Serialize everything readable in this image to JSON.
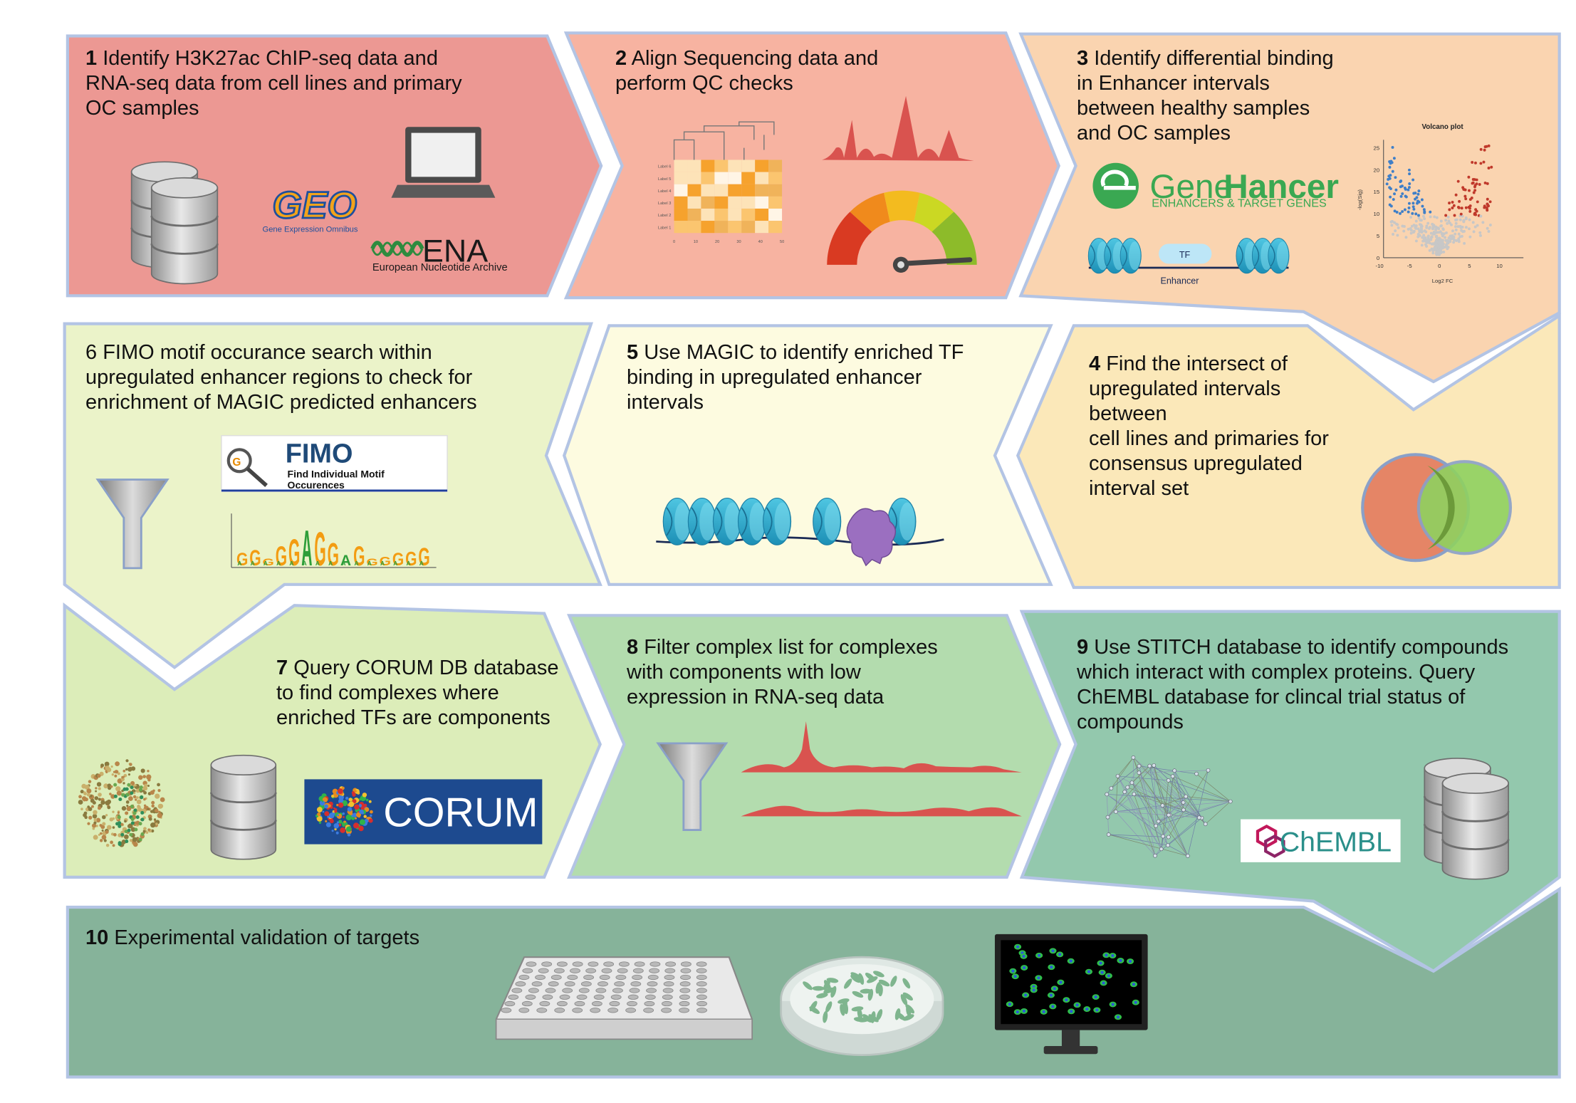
{
  "colors": {
    "step1": "#ec9893",
    "step2": "#f7b3a1",
    "step3": "#fad4b0",
    "step4": "#fbe8b9",
    "step5": "#fdfbe0",
    "step6": "#ebf3c9",
    "step7": "#dcedb9",
    "step8": "#b3dcae",
    "step9": "#93c8ad",
    "step10": "#86b39a",
    "border": "#b3c4e4"
  },
  "steps": [
    {
      "num": "1",
      "text": "Identify H3K27ac ChIP-seq data and\nRNA-seq data from cell lines and primary\nOC samples"
    },
    {
      "num": "2",
      "text": "Align Sequencing data and\nperform QC checks"
    },
    {
      "num": "3",
      "text": "Identify differential binding\nin Enhancer intervals\nbetween healthy samples\nand OC samples"
    },
    {
      "num": "4",
      "text": "Find the intersect of\nupregulated intervals\nbetween\ncell lines and primaries for\nconsensus upregulated\ninterval set"
    },
    {
      "num": "5",
      "text": "Use MAGIC to identify enriched TF\nbinding in upregulated enhancer\nintervals"
    },
    {
      "num": "6",
      "text": "FIMO motif occurance search within\nupregulated enhancer regions to check for\nenrichment of MAGIC predicted enhancers"
    },
    {
      "num": "7",
      "text": "Query CORUM DB database\nto find complexes where\nenriched TFs are components"
    },
    {
      "num": "8",
      "text": "Filter complex list for complexes\nwith components with low\nexpression in RNA-seq data"
    },
    {
      "num": "9",
      "text": "Use STITCH database to identify compounds\nwhich interact with complex proteins. Query\nChEMBL database for clincal trial status of\ncompounds"
    },
    {
      "num": "10",
      "text": "Experimental validation of targets"
    }
  ],
  "logos": {
    "geo": "GEO",
    "geo_sub": "Gene Expression Omnibus",
    "ena": "ENA",
    "ena_sub": "European Nucleotide Archive",
    "genehancer_a": "Gene",
    "genehancer_b": "Hancer",
    "genehancer_sub": "ENHANCERS & TARGET GENES",
    "fimo": "FIMO",
    "fimo_sub1": "Find Individual Motif",
    "fimo_sub2": "Occurences",
    "corum": "CORUM",
    "chembl": "ChEMBL"
  },
  "labels": {
    "tf": "TF",
    "enhancer": "Enhancer",
    "volcano_title": "Volcano plot",
    "volcano_xlabel": "Log2 FC",
    "volcano_ylabel": "-log(Sig)",
    "volcano_xticks": [
      "-10",
      "-5",
      "0",
      "5",
      "10"
    ],
    "volcano_yticks": [
      "0",
      "5",
      "10",
      "15",
      "20",
      "25"
    ],
    "heatmap_rows": [
      "Label 6",
      "Label 5",
      "Label 4",
      "Label 3",
      "Label 2",
      "Label 1"
    ],
    "heatmap_xticks": [
      "0",
      "10",
      "20",
      "30",
      "40",
      "50"
    ]
  }
}
